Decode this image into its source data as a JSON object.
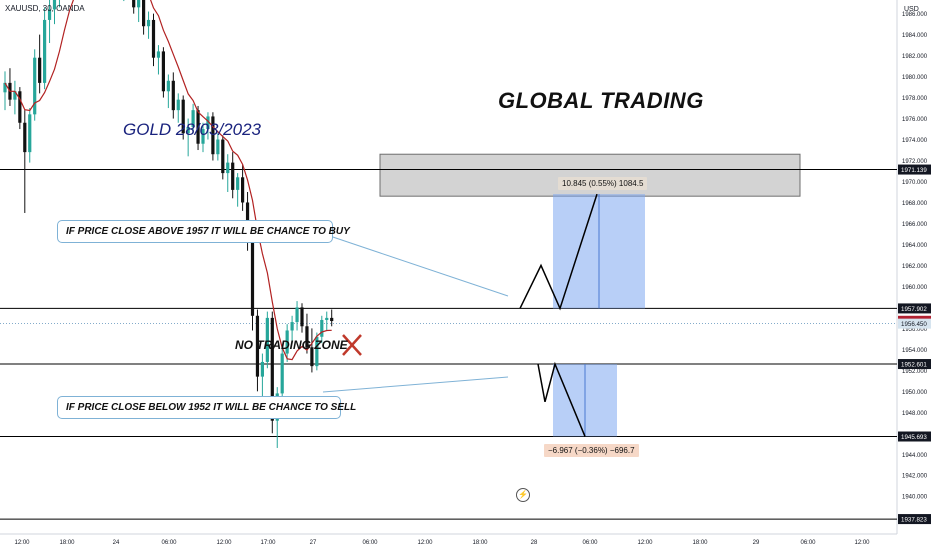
{
  "header": {
    "symbol": "XAUUSD, 30, OANDA",
    "currency": "USD"
  },
  "annotations": {
    "gold_title": "GOLD 28/03/2023",
    "brand_title": "GLOBAL TRADING",
    "no_trading_zone": "NO TRADING ZONE",
    "note_buy": "IF PRICE CLOSE ABOVE 1957 IT WILL BE CHANCE TO BUY",
    "note_sell": "IF PRICE CLOSE BELOW 1952 IT WILL BE CHANCE TO SELL",
    "measure_up": "10.845 (0.55%) 1084.5",
    "measure_down": "−6.967 (−0.36%) −696.7"
  },
  "colors": {
    "bull": "#26a69a",
    "bear": "#111111",
    "ma": "#b22222",
    "zone_fill": "#9e9e9e",
    "target_fill": "#7da7f0",
    "line": "#000000",
    "current_price_bg": "#b22232",
    "current_line": "#5a8fb8"
  },
  "chart_data": {
    "type": "candlestick",
    "symbol": "XAUUSD",
    "timeframe": "30",
    "ylim": [
      1936.4,
      1987.3
    ],
    "y_ticks": [
      "1986.000",
      "1984.000",
      "1982.000",
      "1980.000",
      "1978.000",
      "1976.000",
      "1974.000",
      "1972.000",
      "1970.000",
      "1968.000",
      "1966.000",
      "1964.000",
      "1962.000",
      "1960.000",
      "1958.000",
      "1956.000",
      "1954.000",
      "1952.000",
      "1950.000",
      "1948.000",
      "1946.000",
      "1944.000",
      "1942.000",
      "1940.000",
      "1938.000"
    ],
    "x_ticks": [
      "12:00",
      "18:00",
      "24",
      "06:00",
      "12:00",
      "17:00",
      "27",
      "06:00",
      "12:00",
      "18:00",
      "28",
      "06:00",
      "12:00",
      "18:00",
      "29",
      "06:00",
      "12:00"
    ],
    "price_labels": [
      {
        "value": 1971.139,
        "text": "1971.139",
        "style": "dark"
      },
      {
        "value": 1957.902,
        "text": "1957.902",
        "style": "dark"
      },
      {
        "value": 1956.722,
        "text": "1956.722",
        "style": "red"
      },
      {
        "value": 1956.45,
        "text": "1956.450",
        "style": "blue"
      },
      {
        "value": 1952.601,
        "text": "1952.601",
        "style": "dark"
      },
      {
        "value": 1945.693,
        "text": "1945.693",
        "style": "dark"
      },
      {
        "value": 1937.823,
        "text": "1937.823",
        "style": "dark"
      }
    ],
    "horizontal_lines": [
      1971.139,
      1957.902,
      1952.601,
      1945.693,
      1937.823
    ],
    "zone": {
      "top": 1972.6,
      "bottom": 1968.6
    },
    "candles_ohlc": [
      [
        1978.5,
        1980.5,
        1976.8,
        1979.4
      ],
      [
        1979.4,
        1980.8,
        1977.2,
        1977.8
      ],
      [
        1977.8,
        1979.6,
        1976.4,
        1978.6
      ],
      [
        1978.6,
        1979.0,
        1975.0,
        1975.6
      ],
      [
        1975.6,
        1976.8,
        1967.0,
        1972.8
      ],
      [
        1972.8,
        1977.0,
        1971.8,
        1976.4
      ],
      [
        1976.4,
        1982.6,
        1975.8,
        1981.8
      ],
      [
        1981.8,
        1984.0,
        1978.4,
        1979.4
      ],
      [
        1979.4,
        1986.6,
        1978.8,
        1985.4
      ],
      [
        1985.4,
        1988.0,
        1983.2,
        1986.4
      ],
      [
        1986.4,
        1988.6,
        1985.0,
        1987.8
      ],
      [
        1987.8,
        1990.0,
        1986.6,
        1989.4
      ],
      [
        1989.4,
        1991.0,
        1987.4,
        1988.6
      ],
      [
        1988.6,
        1992.0,
        1988.0,
        1991.2
      ],
      [
        1991.2,
        1993.0,
        1989.8,
        1992.2
      ],
      [
        1992.2,
        1994.0,
        1990.6,
        1993.4
      ],
      [
        1993.4,
        1995.0,
        1992.0,
        1994.0
      ],
      [
        1994.0,
        1996.0,
        1992.8,
        1995.4
      ],
      [
        1995.4,
        1997.0,
        1993.6,
        1996.6
      ],
      [
        1996.6,
        1998.0,
        1995.0,
        1997.4
      ],
      [
        1997.4,
        1998.6,
        1989.0,
        1990.2
      ],
      [
        1990.2,
        1994.0,
        1989.6,
        1993.2
      ],
      [
        1993.2,
        1995.0,
        1991.0,
        1992.0
      ],
      [
        1992.0,
        1993.0,
        1987.6,
        1988.4
      ],
      [
        1988.4,
        1990.2,
        1987.2,
        1989.6
      ],
      [
        1989.6,
        1991.0,
        1987.8,
        1988.2
      ],
      [
        1988.2,
        1989.6,
        1986.0,
        1986.6
      ],
      [
        1986.6,
        1988.4,
        1985.2,
        1987.6
      ],
      [
        1987.6,
        1988.6,
        1984.0,
        1984.8
      ],
      [
        1984.8,
        1986.2,
        1983.6,
        1985.4
      ],
      [
        1985.4,
        1986.0,
        1981.0,
        1981.8
      ],
      [
        1981.8,
        1983.0,
        1980.2,
        1982.4
      ],
      [
        1982.4,
        1982.8,
        1978.0,
        1978.6
      ],
      [
        1978.6,
        1980.2,
        1977.0,
        1979.6
      ],
      [
        1979.6,
        1980.4,
        1976.0,
        1976.8
      ],
      [
        1976.8,
        1978.4,
        1975.6,
        1977.8
      ],
      [
        1977.8,
        1978.2,
        1974.0,
        1974.6
      ],
      [
        1974.6,
        1976.0,
        1972.4,
        1975.2
      ],
      [
        1975.2,
        1977.4,
        1974.6,
        1976.8
      ],
      [
        1976.8,
        1977.2,
        1973.0,
        1973.6
      ],
      [
        1973.6,
        1975.6,
        1972.8,
        1975.0
      ],
      [
        1975.0,
        1976.6,
        1974.0,
        1976.2
      ],
      [
        1976.2,
        1976.6,
        1972.0,
        1972.6
      ],
      [
        1972.6,
        1974.6,
        1972.0,
        1974.0
      ],
      [
        1974.0,
        1974.4,
        1970.2,
        1970.8
      ],
      [
        1970.8,
        1972.6,
        1969.0,
        1971.8
      ],
      [
        1971.8,
        1972.8,
        1968.4,
        1969.2
      ],
      [
        1969.2,
        1970.8,
        1967.6,
        1970.4
      ],
      [
        1970.4,
        1971.6,
        1967.2,
        1968.0
      ],
      [
        1968.0,
        1969.0,
        1963.4,
        1964.2
      ],
      [
        1964.2,
        1964.8,
        1955.8,
        1957.2
      ],
      [
        1957.2,
        1957.8,
        1950.0,
        1951.4
      ],
      [
        1951.4,
        1953.6,
        1948.8,
        1952.8
      ],
      [
        1952.8,
        1957.6,
        1952.2,
        1957.0
      ],
      [
        1957.0,
        1957.6,
        1946.0,
        1947.2
      ],
      [
        1947.2,
        1950.4,
        1944.6,
        1949.8
      ],
      [
        1949.8,
        1954.2,
        1949.0,
        1953.6
      ],
      [
        1953.6,
        1956.4,
        1952.8,
        1955.8
      ],
      [
        1955.8,
        1957.2,
        1954.6,
        1956.6
      ],
      [
        1956.6,
        1958.6,
        1955.8,
        1958.0
      ],
      [
        1958.0,
        1958.4,
        1955.6,
        1956.2
      ],
      [
        1956.2,
        1957.4,
        1953.6,
        1954.2
      ],
      [
        1954.2,
        1956.0,
        1951.8,
        1952.4
      ],
      [
        1952.4,
        1955.6,
        1952.0,
        1955.2
      ],
      [
        1955.2,
        1957.2,
        1954.6,
        1956.8
      ],
      [
        1956.8,
        1957.6,
        1955.8,
        1957.0
      ],
      [
        1957.0,
        1957.8,
        1956.2,
        1956.7
      ]
    ],
    "projection_up": [
      [
        1957.9,
        "a"
      ],
      [
        1962.0,
        "b"
      ],
      [
        1957.9,
        "c"
      ],
      [
        1968.8,
        "d"
      ]
    ],
    "projection_down": [
      [
        1952.6,
        "a"
      ],
      [
        1949.0,
        "b"
      ],
      [
        1945.7,
        "c"
      ]
    ]
  }
}
